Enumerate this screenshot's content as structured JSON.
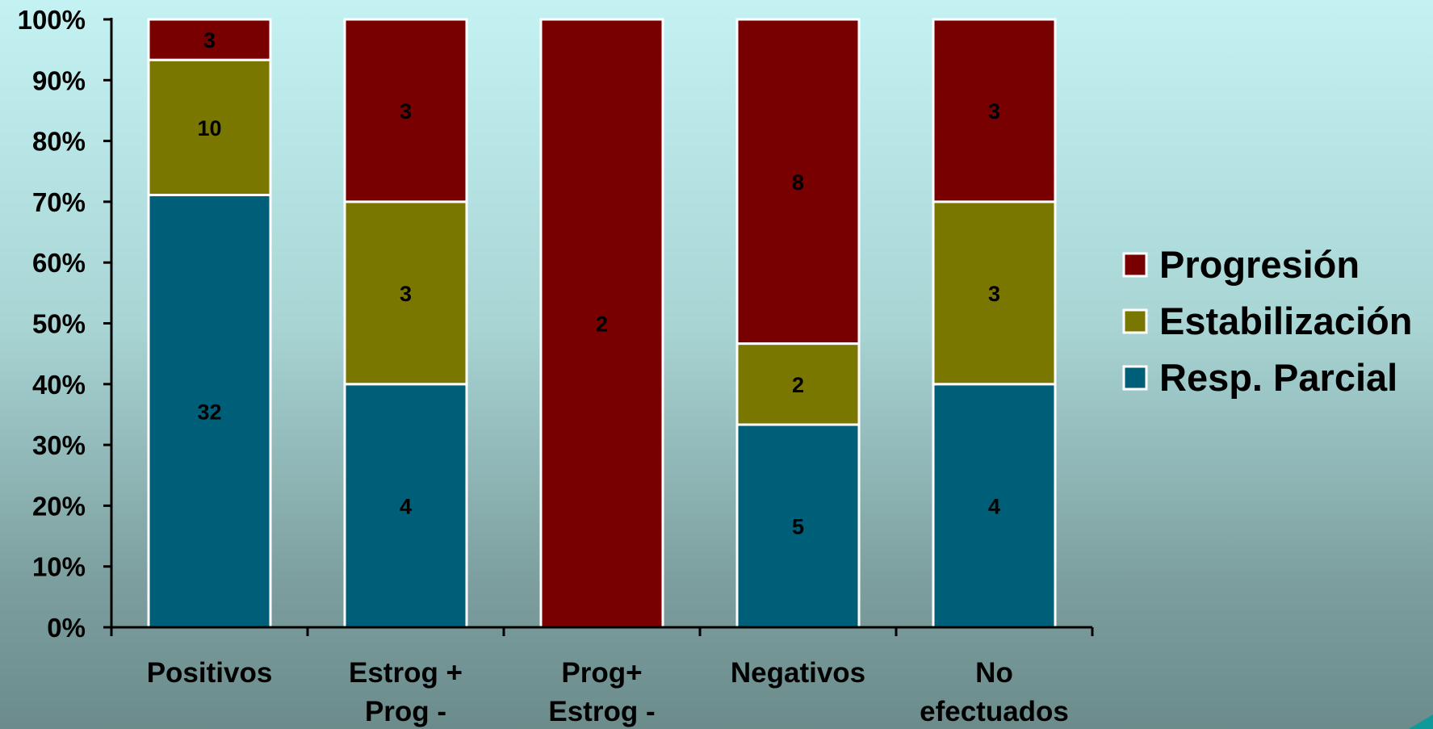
{
  "chart_data": {
    "type": "bar",
    "stacked": true,
    "normalized_percent": true,
    "categories": [
      [
        "Positivos"
      ],
      [
        "Estrog +",
        "Prog -"
      ],
      [
        "Prog+",
        "Estrog -"
      ],
      [
        "Negativos"
      ],
      [
        "No",
        "efectuados"
      ]
    ],
    "series": [
      {
        "name": "Resp. Parcial",
        "color": "#005f78",
        "values": [
          32,
          4,
          0,
          5,
          4
        ]
      },
      {
        "name": "Estabilización",
        "color": "#7a7700",
        "values": [
          10,
          3,
          0,
          2,
          3
        ]
      },
      {
        "name": "Progresión",
        "color": "#780000",
        "values": [
          3,
          3,
          2,
          8,
          3
        ]
      }
    ],
    "ylim": [
      0,
      100
    ],
    "yticks": [
      "0%",
      "10%",
      "20%",
      "30%",
      "40%",
      "50%",
      "60%",
      "70%",
      "80%",
      "90%",
      "100%"
    ],
    "legend_order": [
      "Progresión",
      "Estabilización",
      "Resp. Parcial"
    ],
    "legend_position": "right",
    "grid": false
  }
}
